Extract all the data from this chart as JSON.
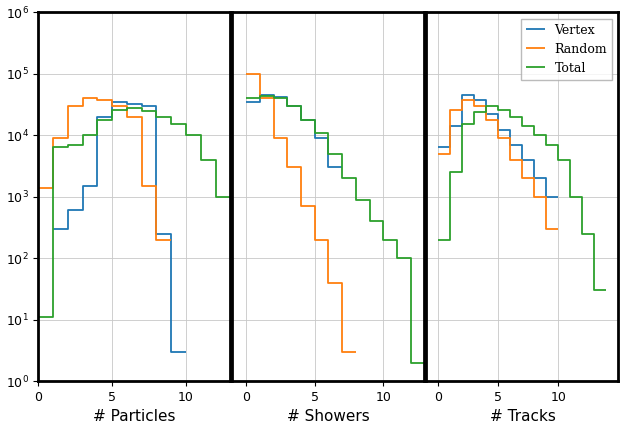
{
  "colors": {
    "vertex": "#1f77b4",
    "random": "#ff7f0e",
    "total": "#2ca02c"
  },
  "legend_labels": [
    "Vertex",
    "Random",
    "Total"
  ],
  "xlabels": [
    "# Particles",
    "# Showers",
    "# Tracks"
  ],
  "ylim": [
    1.0,
    1000000.0
  ],
  "panels": [
    {
      "name": "particles",
      "xmin": 0,
      "xmax": 13,
      "xticks": [
        0,
        5,
        10
      ],
      "bins": [
        0,
        1,
        2,
        3,
        4,
        5,
        6,
        7,
        8,
        9,
        10,
        11,
        12,
        13
      ],
      "vertex": [
        0,
        300,
        600,
        1500,
        20000,
        35000,
        32000,
        30000,
        250,
        3,
        0,
        0,
        0
      ],
      "random": [
        1400,
        9000,
        30000,
        40000,
        38000,
        30000,
        20000,
        1500,
        200,
        0,
        0,
        0,
        0
      ],
      "total": [
        11,
        6500,
        7000,
        10000,
        18000,
        26000,
        28000,
        25000,
        20000,
        15000,
        10000,
        4000,
        1000
      ]
    },
    {
      "name": "showers",
      "xmin": -1,
      "xmax": 13,
      "xticks": [
        0,
        5,
        10
      ],
      "bins": [
        -1,
        0,
        1,
        2,
        3,
        4,
        5,
        6,
        7,
        8,
        9,
        10,
        11,
        12,
        13
      ],
      "vertex": [
        0,
        35000,
        45000,
        42000,
        30000,
        18000,
        9000,
        3000,
        0,
        0,
        0,
        0,
        0,
        0
      ],
      "random": [
        0,
        100000,
        40000,
        9000,
        3000,
        700,
        200,
        40,
        3,
        0,
        0,
        0,
        0,
        0
      ],
      "total": [
        0,
        40000,
        44000,
        40000,
        30000,
        18000,
        11000,
        5000,
        2000,
        900,
        400,
        200,
        100,
        2
      ]
    },
    {
      "name": "tracks",
      "xmin": -1,
      "xmax": 15,
      "xticks": [
        0,
        5,
        10
      ],
      "bins": [
        -1,
        0,
        1,
        2,
        3,
        4,
        5,
        6,
        7,
        8,
        9,
        10,
        11,
        12,
        13,
        14,
        15
      ],
      "vertex": [
        0,
        6500,
        14000,
        45000,
        38000,
        22000,
        12000,
        7000,
        4000,
        2000,
        1000,
        0,
        0,
        0,
        0,
        0
      ],
      "random": [
        0,
        5000,
        26000,
        38000,
        30000,
        18000,
        9000,
        4000,
        2000,
        1000,
        300,
        0,
        0,
        0,
        0,
        0
      ],
      "total": [
        0,
        200,
        2500,
        15000,
        24000,
        30000,
        26000,
        20000,
        14000,
        10000,
        7000,
        4000,
        1000,
        250,
        30,
        0
      ]
    }
  ],
  "figsize": [
    6.24,
    4.3
  ],
  "dpi": 100,
  "spine_lw": 2.0,
  "line_lw": 1.3,
  "grid_color": "#c8c8c8",
  "legend_panel": 2,
  "legend_loc": "upper right",
  "legend_fontsize": 9,
  "xlabel_fontsize": 11,
  "ytick_fontsize": 9,
  "xtick_fontsize": 9
}
